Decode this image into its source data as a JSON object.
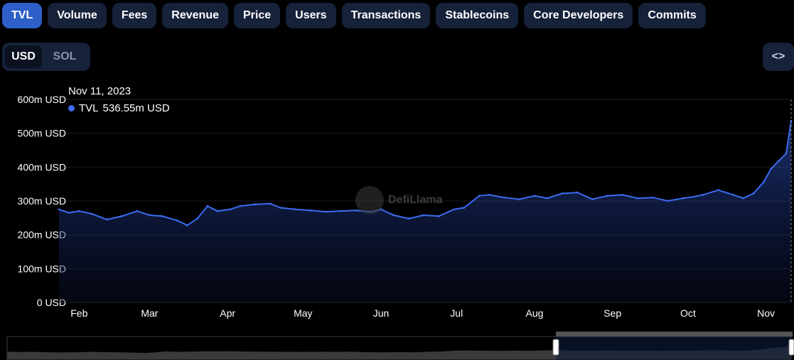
{
  "tabs": [
    "TVL",
    "Volume",
    "Fees",
    "Revenue",
    "Price",
    "Users",
    "Transactions",
    "Stablecoins",
    "Core Developers",
    "Commits"
  ],
  "active_tab": "TVL",
  "currency": {
    "options": [
      "USD",
      "SOL"
    ],
    "selected": "USD"
  },
  "embed_label": "<>",
  "tooltip": {
    "date": "Nov 11, 2023",
    "series": "TVL",
    "value": "536.55m USD"
  },
  "watermark": "DefiLlama",
  "colors": {
    "line": "#3b6bf0",
    "active_tab": "#2e5fc9",
    "tab_bg": "#16213a"
  },
  "chart_data": {
    "type": "area",
    "x_labels": [
      "Feb",
      "Mar",
      "Apr",
      "May",
      "Jun",
      "Jul",
      "Aug",
      "Sep",
      "Oct",
      "Nov"
    ],
    "y_ticks": [
      "0 USD",
      "100m USD",
      "200m USD",
      "300m USD",
      "400m USD",
      "500m USD",
      "600m USD"
    ],
    "ylim": [
      0,
      600
    ],
    "y_unit": "m USD",
    "grid": true,
    "series": [
      {
        "name": "TVL",
        "x": [
          "2023-01-24",
          "2023-01-28",
          "2023-02-01",
          "2023-02-06",
          "2023-02-12",
          "2023-02-18",
          "2023-02-24",
          "2023-03-01",
          "2023-03-06",
          "2023-03-12",
          "2023-03-16",
          "2023-03-20",
          "2023-03-24",
          "2023-03-28",
          "2023-04-02",
          "2023-04-06",
          "2023-04-12",
          "2023-04-18",
          "2023-04-22",
          "2023-04-28",
          "2023-05-04",
          "2023-05-10",
          "2023-05-16",
          "2023-05-22",
          "2023-05-28",
          "2023-06-01",
          "2023-06-06",
          "2023-06-12",
          "2023-06-18",
          "2023-06-24",
          "2023-06-30",
          "2023-07-04",
          "2023-07-10",
          "2023-07-14",
          "2023-07-20",
          "2023-07-26",
          "2023-08-01",
          "2023-08-06",
          "2023-08-12",
          "2023-08-18",
          "2023-08-24",
          "2023-08-30",
          "2023-09-05",
          "2023-09-11",
          "2023-09-17",
          "2023-09-23",
          "2023-09-29",
          "2023-10-03",
          "2023-10-07",
          "2023-10-13",
          "2023-10-19",
          "2023-10-23",
          "2023-10-27",
          "2023-10-31",
          "2023-11-03",
          "2023-11-06",
          "2023-11-09",
          "2023-11-11"
        ],
        "values": [
          275,
          265,
          270,
          262,
          245,
          255,
          270,
          258,
          255,
          242,
          228,
          248,
          285,
          270,
          275,
          285,
          290,
          292,
          280,
          275,
          272,
          268,
          270,
          272,
          268,
          275,
          258,
          248,
          258,
          255,
          275,
          280,
          315,
          318,
          310,
          305,
          315,
          308,
          322,
          325,
          305,
          315,
          318,
          308,
          310,
          300,
          308,
          312,
          318,
          332,
          318,
          308,
          322,
          355,
          395,
          418,
          440,
          536.55
        ]
      }
    ]
  }
}
